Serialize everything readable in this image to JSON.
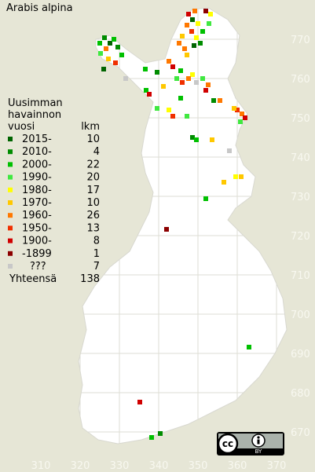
{
  "title": "Arabis alpina",
  "legend": {
    "heading": [
      "Uusimman",
      "havainnon",
      "vuosi"
    ],
    "count_heading": "lkm",
    "items": [
      {
        "label": "2015-",
        "count": 10,
        "color": "#006400"
      },
      {
        "label": "2010-",
        "count": 4,
        "color": "#008c00"
      },
      {
        "label": "2000-",
        "count": 22,
        "color": "#00c000"
      },
      {
        "label": "1990-",
        "count": 20,
        "color": "#40e840"
      },
      {
        "label": "1980-",
        "count": 17,
        "color": "#ffff00"
      },
      {
        "label": "1970-",
        "count": 10,
        "color": "#ffc800"
      },
      {
        "label": "1960-",
        "count": 26,
        "color": "#ff7800"
      },
      {
        "label": "1950-",
        "count": 13,
        "color": "#f03000"
      },
      {
        "label": "1900-",
        "count": 8,
        "color": "#d00000"
      },
      {
        "label": "-1899",
        "count": 1,
        "color": "#8c0000"
      },
      {
        "label": "???",
        "count": 7,
        "color": "#c8c8c8"
      }
    ],
    "total_label": "Yhteensä",
    "total": 138
  },
  "grid": {
    "x_labels": [
      310,
      320,
      330,
      340,
      350,
      360,
      370
    ],
    "y_labels": [
      670,
      680,
      690,
      700,
      710,
      720,
      730,
      740,
      750,
      760,
      770
    ]
  },
  "license": {
    "icon": "cc",
    "label": "BY"
  }
}
